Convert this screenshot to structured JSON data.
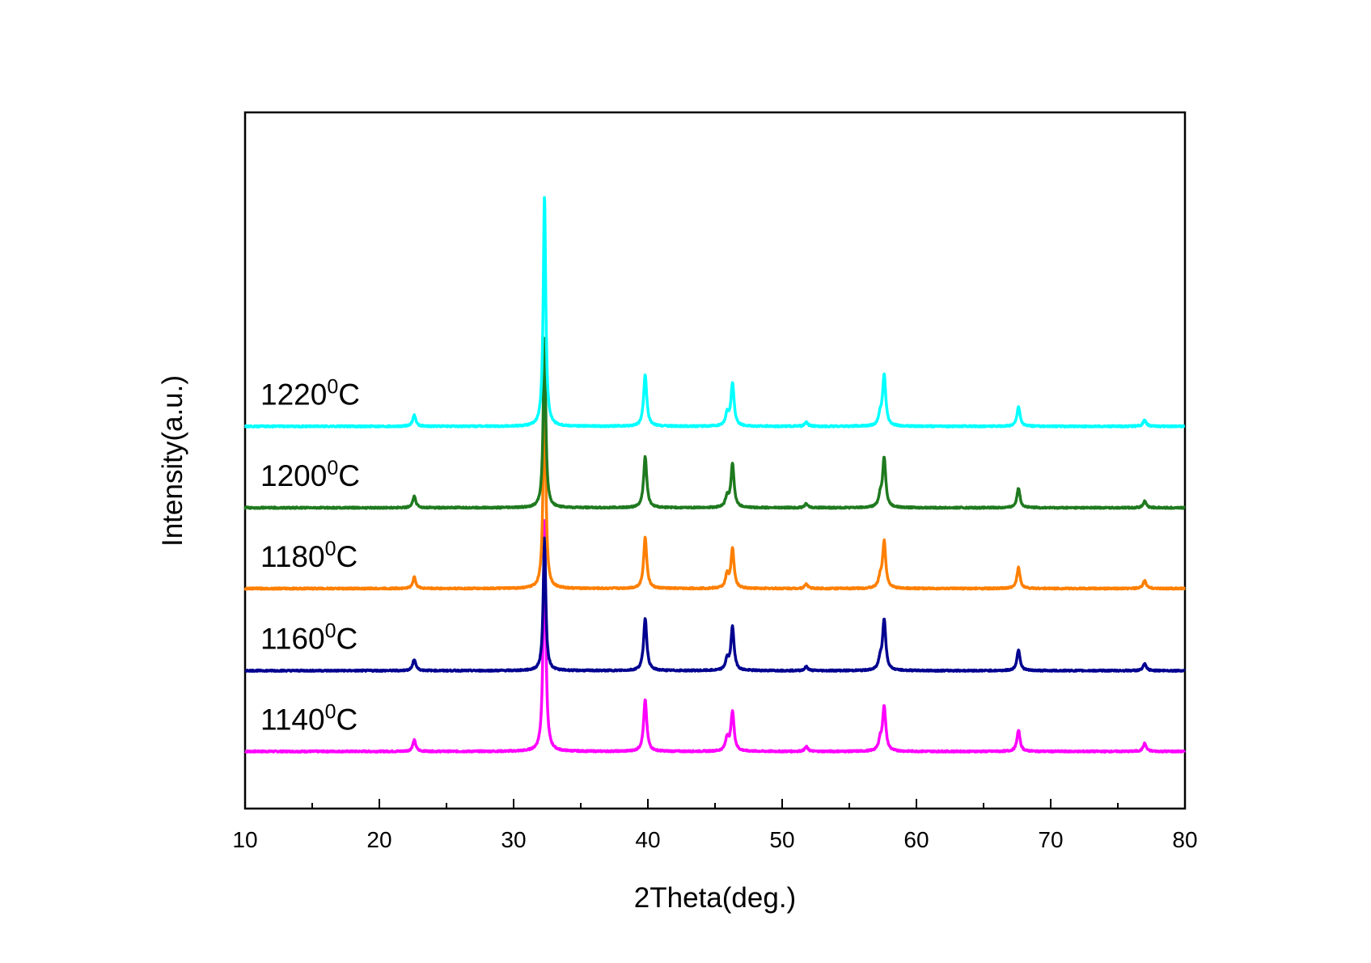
{
  "chart_data": {
    "type": "line",
    "title": "",
    "xlabel": "2Theta(deg.)",
    "ylabel": "Intensity(a.u.)",
    "xlim": [
      10,
      80
    ],
    "x_ticks": [
      10,
      20,
      30,
      40,
      50,
      60,
      70,
      80
    ],
    "x_tick_labels": [
      "10",
      "20",
      "30",
      "40",
      "50",
      "60",
      "70",
      "80"
    ],
    "y_scale": "arbitrary units, series vertically offset",
    "ylim": [
      0,
      10.6
    ],
    "grid": false,
    "legend": "inline labels at left of each trace",
    "series": [
      {
        "name": "1140",
        "label_main": "1140",
        "label_sup": "0",
        "label_unit": "C",
        "color": "#ff00ff",
        "baseline": 0.87,
        "peaks": [
          [
            22.6,
            0.17
          ],
          [
            32.3,
            3.55
          ],
          [
            39.8,
            0.78
          ],
          [
            45.9,
            0.2
          ],
          [
            46.3,
            0.6
          ],
          [
            51.8,
            0.07
          ],
          [
            57.3,
            0.15
          ],
          [
            57.6,
            0.68
          ],
          [
            67.6,
            0.32
          ],
          [
            77.0,
            0.12
          ]
        ]
      },
      {
        "name": "1160",
        "label_main": "1160",
        "label_sup": "0",
        "label_unit": "C",
        "color": "#000090",
        "baseline": 2.1,
        "peaks": [
          [
            22.6,
            0.17
          ],
          [
            32.3,
            2.03
          ],
          [
            39.8,
            0.8
          ],
          [
            45.9,
            0.16
          ],
          [
            46.3,
            0.66
          ],
          [
            51.8,
            0.06
          ],
          [
            57.3,
            0.16
          ],
          [
            57.6,
            0.77
          ],
          [
            67.6,
            0.32
          ],
          [
            77.0,
            0.1
          ]
        ]
      },
      {
        "name": "1180",
        "label_main": "1180",
        "label_sup": "0",
        "label_unit": "C",
        "color": "#ff7f00",
        "baseline": 3.35,
        "peaks": [
          [
            22.6,
            0.17
          ],
          [
            32.3,
            3.3
          ],
          [
            39.8,
            0.78
          ],
          [
            45.9,
            0.2
          ],
          [
            46.3,
            0.6
          ],
          [
            51.8,
            0.07
          ],
          [
            57.3,
            0.15
          ],
          [
            57.6,
            0.71
          ],
          [
            67.6,
            0.32
          ],
          [
            77.0,
            0.12
          ]
        ]
      },
      {
        "name": "1200",
        "label_main": "1200",
        "label_sup": "0",
        "label_unit": "C",
        "color": "#1f7a1f",
        "baseline": 4.58,
        "peaks": [
          [
            22.6,
            0.17
          ],
          [
            32.3,
            2.6
          ],
          [
            39.8,
            0.78
          ],
          [
            45.9,
            0.16
          ],
          [
            46.3,
            0.66
          ],
          [
            51.8,
            0.06
          ],
          [
            57.3,
            0.16
          ],
          [
            57.6,
            0.75
          ],
          [
            67.6,
            0.3
          ],
          [
            77.0,
            0.1
          ]
        ]
      },
      {
        "name": "1220",
        "label_main": "1220",
        "label_sup": "0",
        "label_unit": "C",
        "color": "#00ffff",
        "baseline": 5.82,
        "peaks": [
          [
            22.6,
            0.17
          ],
          [
            32.3,
            3.52
          ],
          [
            39.8,
            0.78
          ],
          [
            45.9,
            0.18
          ],
          [
            46.3,
            0.65
          ],
          [
            51.8,
            0.06
          ],
          [
            57.3,
            0.15
          ],
          [
            57.6,
            0.77
          ],
          [
            67.6,
            0.3
          ],
          [
            77.0,
            0.1
          ]
        ]
      }
    ]
  }
}
